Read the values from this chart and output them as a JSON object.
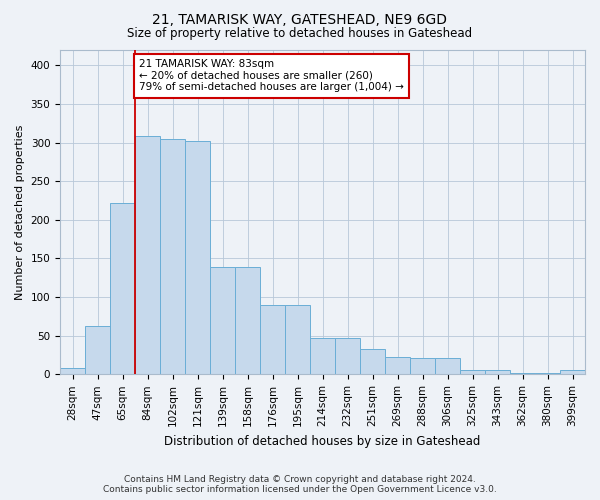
{
  "title": "21, TAMARISK WAY, GATESHEAD, NE9 6GD",
  "subtitle": "Size of property relative to detached houses in Gateshead",
  "xlabel": "Distribution of detached houses by size in Gateshead",
  "ylabel": "Number of detached properties",
  "categories": [
    "28sqm",
    "47sqm",
    "65sqm",
    "84sqm",
    "102sqm",
    "121sqm",
    "139sqm",
    "158sqm",
    "176sqm",
    "195sqm",
    "214sqm",
    "232sqm",
    "251sqm",
    "269sqm",
    "288sqm",
    "306sqm",
    "325sqm",
    "343sqm",
    "362sqm",
    "380sqm",
    "399sqm"
  ],
  "values": [
    8,
    63,
    222,
    308,
    305,
    302,
    139,
    139,
    90,
    90,
    47,
    47,
    33,
    22,
    21,
    21,
    5,
    5,
    2,
    2,
    5
  ],
  "bar_color": "#c6d9ec",
  "bar_edgecolor": "#6aaed6",
  "vline_x_index": 3,
  "annotation_box_text": "21 TAMARISK WAY: 83sqm\n← 20% of detached houses are smaller (260)\n79% of semi-detached houses are larger (1,004) →",
  "annotation_box_color": "white",
  "annotation_box_edgecolor": "#cc0000",
  "vline_color": "#cc0000",
  "ylim": [
    0,
    420
  ],
  "yticks": [
    0,
    50,
    100,
    150,
    200,
    250,
    300,
    350,
    400
  ],
  "footer_line1": "Contains HM Land Registry data © Crown copyright and database right 2024.",
  "footer_line2": "Contains public sector information licensed under the Open Government Licence v3.0.",
  "bg_color": "#eef2f7",
  "plot_bg_color": "#eef2f7",
  "grid_color": "#b8c8d8",
  "title_fontsize": 10,
  "subtitle_fontsize": 8.5,
  "xlabel_fontsize": 8.5,
  "ylabel_fontsize": 8,
  "tick_fontsize": 7.5,
  "footer_fontsize": 6.5,
  "annot_fontsize": 7.5
}
